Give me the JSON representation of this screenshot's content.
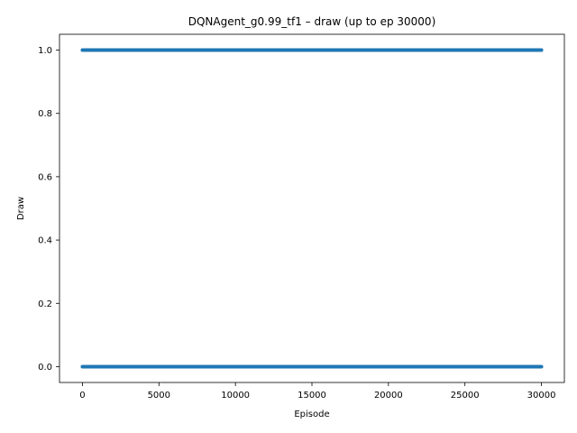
{
  "chart_data": {
    "type": "scatter",
    "title": "DQNAgent_g0.99_tf1 – draw (up to ep 30000)",
    "xlabel": "Episode",
    "ylabel": "Draw",
    "xlim": [
      -1500,
      31500
    ],
    "ylim": [
      -0.05,
      1.05
    ],
    "x_ticks": [
      0,
      5000,
      10000,
      15000,
      20000,
      25000,
      30000
    ],
    "y_ticks": [
      0.0,
      0.2,
      0.4,
      0.6,
      0.8,
      1.0
    ],
    "grid": false,
    "series": [
      {
        "color": "#1f77b4",
        "points_description_range": {
          "x_start": 0,
          "x_end": 30000
        },
        "y_levels": [
          0.0,
          1.0
        ]
      }
    ]
  }
}
